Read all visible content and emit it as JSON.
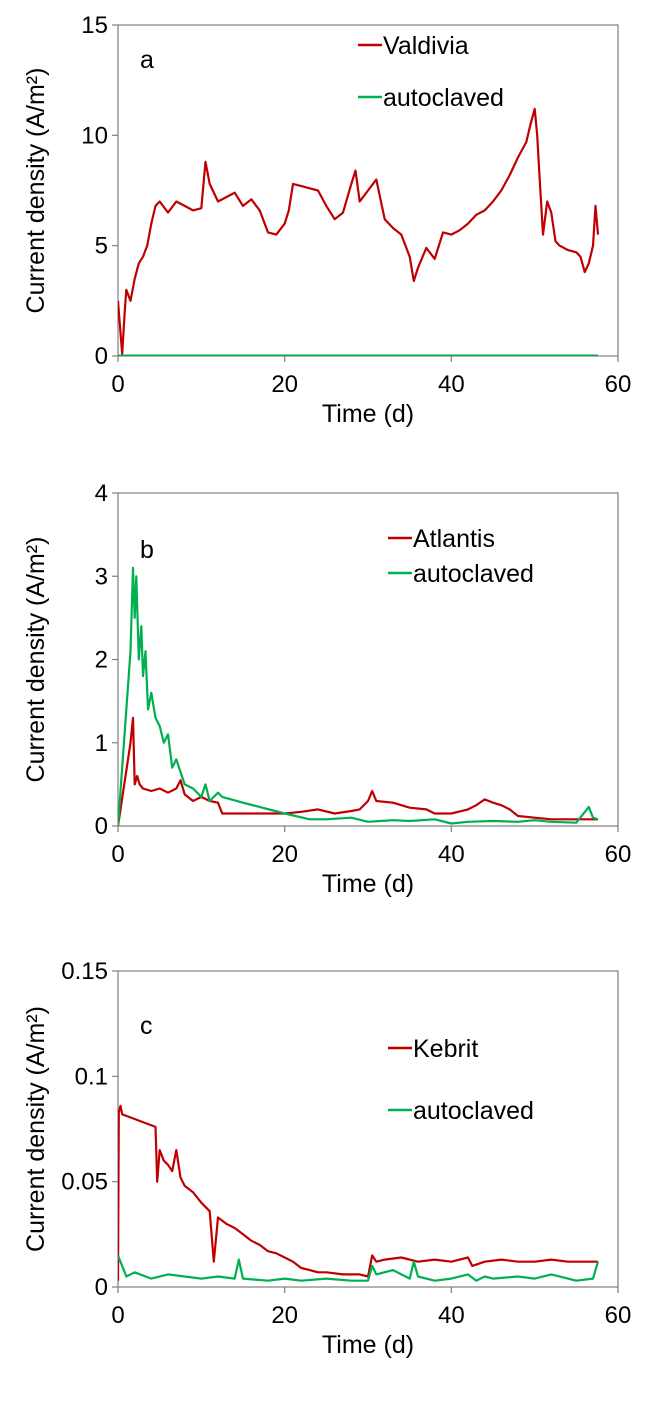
{
  "chart_data": [
    {
      "panel": "a",
      "type": "line",
      "xlabel": "Time (d)",
      "ylabel": "Current density (A/m²)",
      "xlim": [
        0,
        60
      ],
      "ylim": [
        0,
        15
      ],
      "xticks": [
        "0",
        "20",
        "40",
        "60"
      ],
      "yticks": [
        "0",
        "5",
        "10",
        "15"
      ],
      "grid": false,
      "legend": "top-right",
      "colors": [
        "#c00000",
        "#00b050"
      ],
      "series": [
        {
          "name": "Valdivia",
          "color": "#c00000",
          "x": [
            0,
            0.2,
            0.5,
            0.8,
            1.0,
            1.5,
            2,
            2.5,
            3,
            3.5,
            4,
            4.5,
            5,
            6,
            7,
            8,
            9,
            10,
            10.5,
            11,
            12,
            13,
            14,
            15,
            16,
            17,
            18,
            19,
            20,
            20.5,
            21,
            22,
            23,
            24,
            25,
            26,
            27,
            28,
            28.5,
            29,
            30,
            31,
            32,
            33,
            34,
            35,
            35.5,
            36,
            37,
            38,
            39,
            40,
            41,
            42,
            43,
            44,
            45,
            46,
            47,
            48,
            49,
            49.5,
            50,
            50.3,
            50.6,
            51,
            51.5,
            52,
            52.5,
            53,
            54,
            55,
            55.5,
            56,
            56.5,
            57,
            57.3,
            57.6
          ],
          "y": [
            2.5,
            1.5,
            0.1,
            2.0,
            3.0,
            2.5,
            3.5,
            4.2,
            4.5,
            5.0,
            6.0,
            6.8,
            7.0,
            6.5,
            7.0,
            6.8,
            6.6,
            6.7,
            8.8,
            7.8,
            7.0,
            7.2,
            7.4,
            6.8,
            7.1,
            6.6,
            5.6,
            5.5,
            6.0,
            6.6,
            7.8,
            7.7,
            7.6,
            7.5,
            6.8,
            6.2,
            6.5,
            7.8,
            8.4,
            7.0,
            7.5,
            8.0,
            6.2,
            5.8,
            5.5,
            4.5,
            3.4,
            4.0,
            4.9,
            4.4,
            5.6,
            5.5,
            5.7,
            6.0,
            6.4,
            6.6,
            7.0,
            7.5,
            8.2,
            9.0,
            9.7,
            10.5,
            11.2,
            10.0,
            8.0,
            5.5,
            7.0,
            6.5,
            5.2,
            5.0,
            4.8,
            4.7,
            4.5,
            3.8,
            4.2,
            5.0,
            6.8,
            5.5
          ]
        },
        {
          "name": "autoclaved",
          "color": "#00b050",
          "x": [
            0,
            57.6
          ],
          "y": [
            0.02,
            0.02
          ]
        }
      ]
    },
    {
      "panel": "b",
      "type": "line",
      "xlabel": "Time (d)",
      "ylabel": "Current density (A/m²)",
      "xlim": [
        0,
        60
      ],
      "ylim": [
        0,
        4
      ],
      "xticks": [
        "0",
        "20",
        "40",
        "60"
      ],
      "yticks": [
        "0",
        "1",
        "2",
        "3",
        "4"
      ],
      "grid": false,
      "legend": "top-right",
      "colors": [
        "#c00000",
        "#00b050"
      ],
      "series": [
        {
          "name": "Atlantis",
          "color": "#c00000",
          "x": [
            0,
            1.5,
            1.8,
            2.0,
            2.3,
            2.6,
            3,
            4,
            5,
            6,
            7,
            7.5,
            8,
            9,
            10,
            11,
            12,
            12.5,
            13,
            15,
            20,
            22,
            24,
            26,
            28,
            29,
            30,
            30.5,
            31,
            33,
            35,
            37,
            38,
            40,
            42,
            43,
            44,
            45,
            46,
            47,
            48,
            50,
            52,
            54,
            56,
            57.6
          ],
          "y": [
            0.0,
            1.0,
            1.3,
            0.5,
            0.6,
            0.5,
            0.45,
            0.42,
            0.45,
            0.4,
            0.45,
            0.55,
            0.38,
            0.3,
            0.35,
            0.3,
            0.28,
            0.15,
            0.15,
            0.15,
            0.15,
            0.17,
            0.2,
            0.15,
            0.18,
            0.2,
            0.3,
            0.42,
            0.3,
            0.28,
            0.22,
            0.2,
            0.15,
            0.15,
            0.2,
            0.25,
            0.32,
            0.28,
            0.25,
            0.2,
            0.12,
            0.1,
            0.08,
            0.08,
            0.08,
            0.08
          ]
        },
        {
          "name": "autoclaved",
          "color": "#00b050",
          "x": [
            0,
            1.5,
            1.8,
            2.0,
            2.2,
            2.5,
            2.8,
            3.0,
            3.3,
            3.6,
            4.0,
            4.5,
            5,
            5.5,
            6,
            6.5,
            7,
            8,
            9,
            10,
            10.5,
            11,
            12,
            12.5,
            15,
            20,
            23,
            25,
            28,
            30,
            33,
            35,
            38,
            40,
            42,
            45,
            48,
            50,
            52,
            55,
            56.5,
            57,
            57.6
          ],
          "y": [
            0.0,
            2.1,
            3.1,
            2.5,
            3.0,
            2.0,
            2.4,
            1.8,
            2.1,
            1.4,
            1.6,
            1.3,
            1.2,
            1.0,
            1.1,
            0.7,
            0.8,
            0.5,
            0.45,
            0.35,
            0.5,
            0.3,
            0.4,
            0.35,
            0.28,
            0.15,
            0.08,
            0.08,
            0.1,
            0.05,
            0.07,
            0.06,
            0.08,
            0.03,
            0.05,
            0.06,
            0.05,
            0.07,
            0.05,
            0.04,
            0.23,
            0.1,
            0.08
          ]
        }
      ]
    },
    {
      "panel": "c",
      "type": "line",
      "xlabel": "Time (d)",
      "ylabel": "Current density (A/m²)",
      "xlim": [
        0,
        60
      ],
      "ylim": [
        0,
        0.15
      ],
      "xticks": [
        "0",
        "20",
        "40",
        "60"
      ],
      "yticks": [
        "0",
        "0.05",
        "0.1",
        "0.15"
      ],
      "grid": false,
      "legend": "top-right",
      "colors": [
        "#c00000",
        "#00b050"
      ],
      "series": [
        {
          "name": "Kebrit",
          "color": "#c00000",
          "x": [
            0,
            0.1,
            0.3,
            0.5,
            4.5,
            4.7,
            5,
            5.5,
            6,
            6.5,
            7,
            7.5,
            8,
            9,
            10,
            11,
            11.5,
            12,
            13,
            14,
            15,
            16,
            17,
            18,
            19,
            20,
            21,
            22,
            23,
            24,
            25,
            27,
            29,
            30,
            30.5,
            31,
            32,
            34,
            36,
            38,
            40,
            42,
            42.5,
            44,
            46,
            48,
            50,
            52,
            54,
            56,
            57.6
          ],
          "y": [
            0.003,
            0.083,
            0.086,
            0.082,
            0.076,
            0.05,
            0.065,
            0.06,
            0.058,
            0.055,
            0.065,
            0.052,
            0.048,
            0.045,
            0.04,
            0.036,
            0.012,
            0.033,
            0.03,
            0.028,
            0.025,
            0.022,
            0.02,
            0.017,
            0.016,
            0.014,
            0.012,
            0.009,
            0.008,
            0.007,
            0.007,
            0.006,
            0.006,
            0.005,
            0.015,
            0.012,
            0.013,
            0.014,
            0.012,
            0.013,
            0.012,
            0.014,
            0.01,
            0.012,
            0.013,
            0.012,
            0.012,
            0.013,
            0.012,
            0.012,
            0.012
          ]
        },
        {
          "name": "autoclaved",
          "color": "#00b050",
          "x": [
            0,
            1,
            2,
            4,
            6,
            8,
            10,
            12,
            14,
            14.5,
            15,
            18,
            20,
            22,
            25,
            28,
            30,
            30.5,
            31,
            33,
            35,
            35.5,
            36,
            38,
            40,
            42,
            43,
            44,
            45,
            48,
            50,
            52,
            55,
            57,
            57.6
          ],
          "y": [
            0.015,
            0.005,
            0.007,
            0.004,
            0.006,
            0.005,
            0.004,
            0.005,
            0.004,
            0.013,
            0.004,
            0.003,
            0.004,
            0.003,
            0.004,
            0.003,
            0.003,
            0.01,
            0.006,
            0.008,
            0.004,
            0.012,
            0.005,
            0.003,
            0.004,
            0.006,
            0.003,
            0.005,
            0.004,
            0.005,
            0.004,
            0.006,
            0.003,
            0.004,
            0.012
          ]
        }
      ]
    }
  ],
  "panels": [
    {
      "label": "a",
      "legend": [
        "Valdivia",
        "autoclaved"
      ]
    },
    {
      "label": "b",
      "legend": [
        "Atlantis",
        "autoclaved"
      ]
    },
    {
      "label": "c",
      "legend": [
        "Kebrit",
        "autoclaved"
      ]
    }
  ]
}
